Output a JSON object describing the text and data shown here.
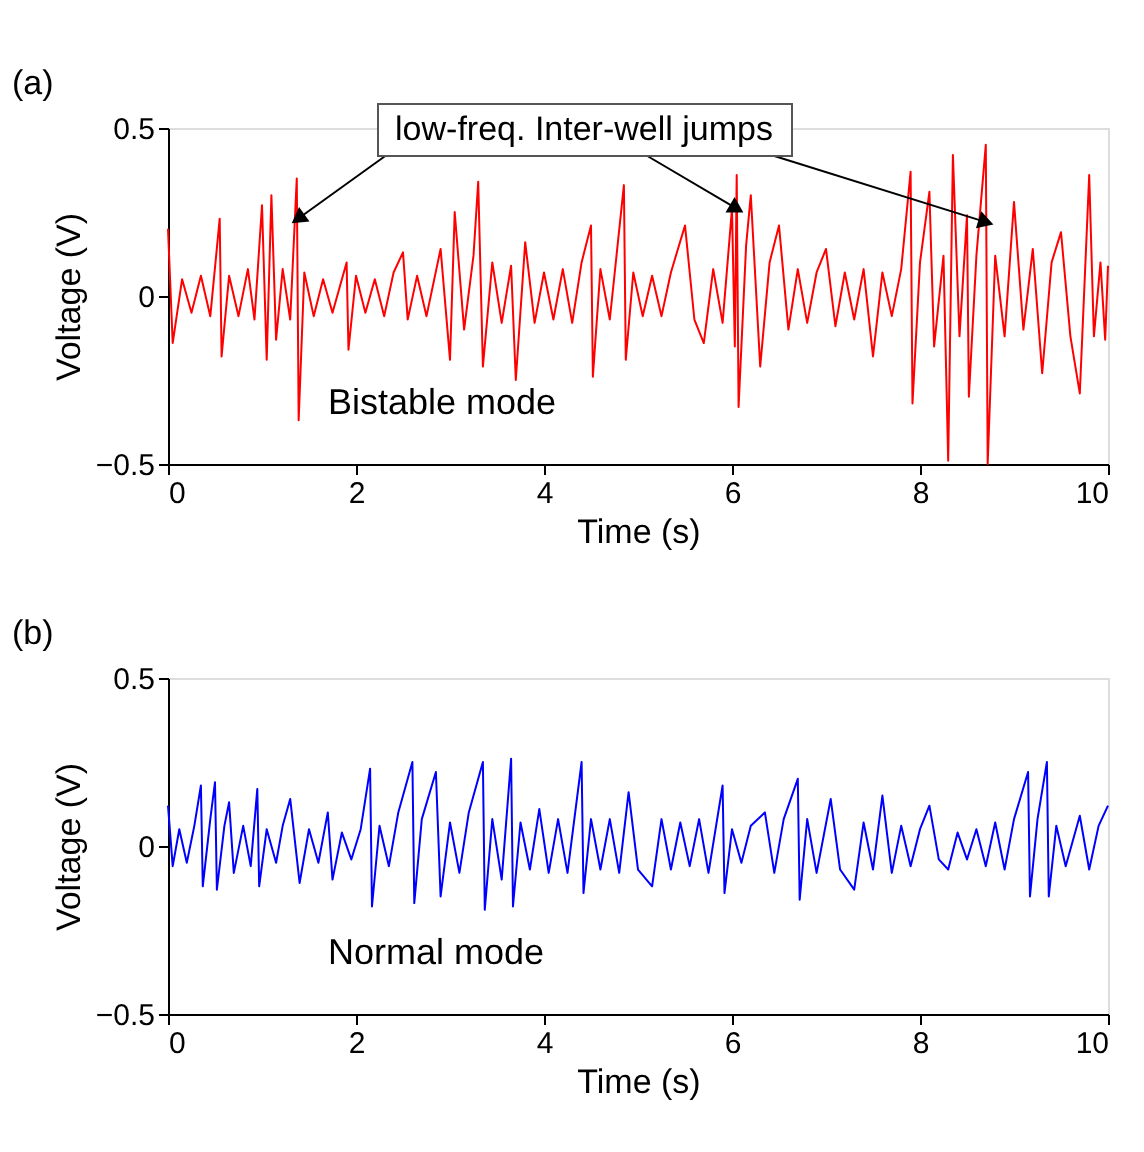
{
  "chart_data": [
    {
      "type": "line",
      "xlabel": "Time (s)",
      "ylabel": "Voltage (V)",
      "xlim": [
        0,
        10
      ],
      "ylim": [
        -0.5,
        0.5
      ],
      "xticks": [
        0,
        2,
        4,
        6,
        8,
        10
      ],
      "yticks": [
        -0.5,
        0,
        0.5
      ],
      "annotations": [
        "(a)",
        {
          "text": "low-freq. Inter-well jumps",
          "x": 6.05,
          "y": 0.26
        },
        "Bistable mode"
      ],
      "x": [
        0,
        0.05,
        0.15,
        0.25,
        0.35,
        0.45,
        0.55,
        0.57,
        0.65,
        0.75,
        0.85,
        0.92,
        1.0,
        1.05,
        1.1,
        1.15,
        1.22,
        1.3,
        1.37,
        1.39,
        1.45,
        1.55,
        1.65,
        1.75,
        1.9,
        1.92,
        2.0,
        2.1,
        2.2,
        2.3,
        2.4,
        2.5,
        2.55,
        2.65,
        2.75,
        2.9,
        3.0,
        3.05,
        3.15,
        3.25,
        3.3,
        3.35,
        3.45,
        3.55,
        3.65,
        3.7,
        3.8,
        3.9,
        4.0,
        4.1,
        4.2,
        4.3,
        4.4,
        4.5,
        4.52,
        4.6,
        4.7,
        4.85,
        4.87,
        4.95,
        5.05,
        5.15,
        5.25,
        5.35,
        5.5,
        5.6,
        5.7,
        5.8,
        5.9,
        6.0,
        6.03,
        6.05,
        6.07,
        6.15,
        6.2,
        6.3,
        6.4,
        6.5,
        6.6,
        6.7,
        6.8,
        6.9,
        7.0,
        7.1,
        7.2,
        7.3,
        7.4,
        7.5,
        7.6,
        7.7,
        7.8,
        7.9,
        7.92,
        8.0,
        8.1,
        8.15,
        8.25,
        8.3,
        8.35,
        8.42,
        8.5,
        8.52,
        8.6,
        8.7,
        8.72,
        8.8,
        8.9,
        9.0,
        9.1,
        9.2,
        9.3,
        9.4,
        9.5,
        9.6,
        9.7,
        9.8,
        9.85,
        9.92,
        9.97,
        10.0
      ],
      "series": [
        {
          "color": "#ff0000",
          "values": [
            0.2,
            -0.14,
            0.05,
            -0.05,
            0.06,
            -0.06,
            0.23,
            -0.18,
            0.06,
            -0.06,
            0.08,
            -0.07,
            0.27,
            -0.19,
            0.3,
            -0.13,
            0.08,
            -0.07,
            0.35,
            -0.37,
            0.07,
            -0.06,
            0.05,
            -0.05,
            0.1,
            -0.16,
            0.06,
            -0.05,
            0.05,
            -0.06,
            0.07,
            0.13,
            -0.07,
            0.06,
            -0.06,
            0.14,
            -0.19,
            0.25,
            -0.1,
            0.12,
            0.34,
            -0.21,
            0.1,
            -0.08,
            0.09,
            -0.25,
            0.16,
            -0.08,
            0.07,
            -0.07,
            0.08,
            -0.08,
            0.1,
            0.21,
            -0.24,
            0.08,
            -0.07,
            0.33,
            -0.19,
            0.07,
            -0.06,
            0.06,
            -0.06,
            0.07,
            0.21,
            -0.07,
            -0.14,
            0.08,
            -0.08,
            0.26,
            -0.15,
            0.36,
            -0.33,
            0.15,
            0.3,
            -0.21,
            0.1,
            0.21,
            -0.1,
            0.08,
            -0.08,
            0.07,
            0.14,
            -0.09,
            0.07,
            -0.07,
            0.08,
            -0.18,
            0.07,
            -0.06,
            0.08,
            0.37,
            -0.32,
            0.1,
            0.31,
            -0.15,
            0.12,
            -0.49,
            0.42,
            -0.12,
            0.24,
            -0.3,
            0.12,
            0.45,
            -0.5,
            0.12,
            -0.12,
            0.28,
            -0.1,
            0.14,
            -0.23,
            0.1,
            0.19,
            -0.12,
            -0.29,
            0.36,
            -0.12,
            0.1,
            -0.13,
            0.09
          ]
        }
      ]
    },
    {
      "type": "line",
      "xlabel": "Time (s)",
      "ylabel": "Voltage (V)",
      "xlim": [
        0,
        10
      ],
      "ylim": [
        -0.5,
        0.5
      ],
      "xticks": [
        0,
        2,
        4,
        6,
        8,
        10
      ],
      "yticks": [
        -0.5,
        0,
        0.5
      ],
      "annotations": [
        "(b)",
        "Normal mode"
      ],
      "x": [
        0,
        0.05,
        0.12,
        0.2,
        0.28,
        0.35,
        0.37,
        0.45,
        0.5,
        0.52,
        0.6,
        0.65,
        0.7,
        0.8,
        0.88,
        0.95,
        0.97,
        1.05,
        1.15,
        1.22,
        1.3,
        1.4,
        1.5,
        1.6,
        1.7,
        1.75,
        1.85,
        1.95,
        2.05,
        2.15,
        2.17,
        2.25,
        2.35,
        2.45,
        2.6,
        2.62,
        2.7,
        2.85,
        2.9,
        3.0,
        3.1,
        3.2,
        3.35,
        3.37,
        3.45,
        3.55,
        3.65,
        3.67,
        3.75,
        3.85,
        3.95,
        4.05,
        4.15,
        4.25,
        4.4,
        4.42,
        4.5,
        4.6,
        4.7,
        4.8,
        4.9,
        5.0,
        5.15,
        5.25,
        5.35,
        5.45,
        5.55,
        5.65,
        5.75,
        5.9,
        5.92,
        6.0,
        6.1,
        6.2,
        6.35,
        6.45,
        6.55,
        6.7,
        6.72,
        6.8,
        6.9,
        7.05,
        7.15,
        7.3,
        7.4,
        7.5,
        7.6,
        7.7,
        7.8,
        7.9,
        8.0,
        8.1,
        8.2,
        8.3,
        8.4,
        8.5,
        8.6,
        8.7,
        8.8,
        8.9,
        9.0,
        9.15,
        9.17,
        9.25,
        9.35,
        9.37,
        9.45,
        9.55,
        9.7,
        9.8,
        9.9,
        10.0
      ],
      "series": [
        {
          "color": "#0000ff",
          "values": [
            0.12,
            -0.06,
            0.05,
            -0.05,
            0.06,
            0.18,
            -0.12,
            0.08,
            0.19,
            -0.13,
            0.06,
            0.13,
            -0.08,
            0.06,
            -0.06,
            0.17,
            -0.12,
            0.05,
            -0.05,
            0.06,
            0.14,
            -0.11,
            0.05,
            -0.05,
            0.1,
            -0.1,
            0.04,
            -0.04,
            0.05,
            0.23,
            -0.18,
            0.06,
            -0.06,
            0.1,
            0.25,
            -0.17,
            0.08,
            0.22,
            -0.15,
            0.07,
            -0.08,
            0.1,
            0.25,
            -0.19,
            0.08,
            -0.1,
            0.26,
            -0.18,
            0.07,
            -0.07,
            0.11,
            -0.08,
            0.08,
            -0.08,
            0.25,
            -0.14,
            0.08,
            -0.07,
            0.08,
            -0.08,
            0.16,
            -0.07,
            -0.12,
            0.08,
            -0.07,
            0.07,
            -0.06,
            0.08,
            -0.08,
            0.18,
            -0.14,
            0.05,
            -0.05,
            0.06,
            0.1,
            -0.08,
            0.08,
            0.2,
            -0.16,
            0.08,
            -0.08,
            0.14,
            -0.07,
            -0.13,
            0.07,
            -0.07,
            0.15,
            -0.08,
            0.06,
            -0.06,
            0.05,
            0.12,
            -0.04,
            -0.07,
            0.04,
            -0.04,
            0.05,
            -0.06,
            0.07,
            -0.07,
            0.08,
            0.22,
            -0.15,
            0.08,
            0.25,
            -0.15,
            0.06,
            -0.06,
            0.09,
            -0.07,
            0.06,
            0.12
          ]
        }
      ]
    }
  ]
}
